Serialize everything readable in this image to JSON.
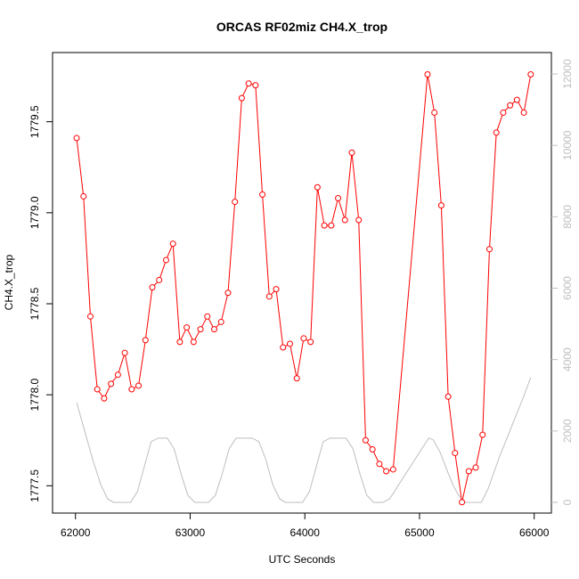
{
  "chart_data": {
    "type": "line",
    "title": "ORCAS RF02miz CH4.X_trop",
    "xlabel": "UTC Seconds",
    "ylabel": "CH4.X_trop",
    "xlim": [
      61800,
      66150
    ],
    "ylim": [
      1777.35,
      1779.88
    ],
    "y2lim": [
      -300,
      12600
    ],
    "x_ticks": [
      62000,
      63000,
      64000,
      65000,
      66000
    ],
    "y_ticks": [
      1777.5,
      1778.0,
      1778.5,
      1779.0,
      1779.5
    ],
    "y_tick_labels": [
      "1777.5",
      "1778.0",
      "1778.5",
      "1779.0",
      "1779.5"
    ],
    "y2_ticks": [
      0,
      2000,
      4000,
      6000,
      8000,
      10000,
      12000
    ],
    "grid": false,
    "series": [
      {
        "axis": "left",
        "color": "#ff0000",
        "marker": "circle-open",
        "x": [
          62010,
          62070,
          62130,
          62190,
          62250,
          62310,
          62370,
          62430,
          62490,
          62550,
          62610,
          62670,
          62730,
          62790,
          62850,
          62910,
          62970,
          63030,
          63090,
          63150,
          63210,
          63270,
          63330,
          63390,
          63450,
          63510,
          63570,
          63630,
          63690,
          63750,
          63810,
          63870,
          63930,
          63990,
          64050,
          64110,
          64170,
          64230,
          64290,
          64350,
          64410,
          64470,
          64530,
          64590,
          64650,
          64710,
          64770,
          65070,
          65130,
          65190,
          65250,
          65310,
          65370,
          65430,
          65490,
          65550,
          65610,
          65670,
          65730,
          65790,
          65850,
          65910,
          65970
        ],
        "values": [
          1779.41,
          1779.09,
          1778.43,
          1778.03,
          1777.98,
          1778.06,
          1778.11,
          1778.23,
          1778.03,
          1778.05,
          1778.3,
          1778.59,
          1778.63,
          1778.74,
          1778.83,
          1778.29,
          1778.37,
          1778.29,
          1778.36,
          1778.43,
          1778.36,
          1778.4,
          1778.56,
          1779.06,
          1779.63,
          1779.71,
          1779.7,
          1779.1,
          1778.54,
          1778.58,
          1778.26,
          1778.28,
          1778.09,
          1778.31,
          1778.29,
          1779.14,
          1778.93,
          1778.93,
          1779.08,
          1778.96,
          1779.33,
          1778.96,
          1777.75,
          1777.7,
          1777.62,
          1777.58,
          1777.59,
          1779.76,
          1779.55,
          1779.04,
          1777.99,
          1777.68,
          1777.41,
          1777.58,
          1777.6,
          1777.78,
          1778.8,
          1779.44,
          1779.55,
          1779.59,
          1779.62,
          1779.55,
          1779.76
        ]
      },
      {
        "axis": "right",
        "color": "#bebebe",
        "marker": "none",
        "x": [
          62010,
          62080,
          62150,
          62220,
          62280,
          62330,
          62400,
          62480,
          62540,
          62600,
          62660,
          62720,
          62800,
          62860,
          62920,
          62980,
          63040,
          63100,
          63160,
          63220,
          63280,
          63340,
          63400,
          63460,
          63540,
          63600,
          63660,
          63720,
          63780,
          63830,
          63900,
          63980,
          64040,
          64100,
          64160,
          64220,
          64300,
          64360,
          64420,
          64480,
          64540,
          64600,
          64680,
          64740,
          64800,
          64880,
          64960,
          65040,
          65080,
          65120,
          65180,
          65240,
          65290,
          65340,
          65400,
          65480,
          65540,
          65600,
          65700,
          65800,
          65900,
          65970
        ],
        "values": [
          2800,
          2000,
          1200,
          500,
          100,
          0,
          0,
          0,
          300,
          1000,
          1700,
          1800,
          1800,
          1500,
          800,
          200,
          0,
          0,
          0,
          200,
          800,
          1500,
          1800,
          1800,
          1800,
          1700,
          1200,
          500,
          100,
          0,
          0,
          0,
          300,
          1000,
          1700,
          1800,
          1800,
          1800,
          1500,
          800,
          200,
          0,
          0,
          100,
          400,
          800,
          1200,
          1600,
          1800,
          1750,
          1400,
          900,
          500,
          200,
          0,
          0,
          0,
          400,
          1300,
          2100,
          2900,
          3500
        ]
      }
    ]
  }
}
